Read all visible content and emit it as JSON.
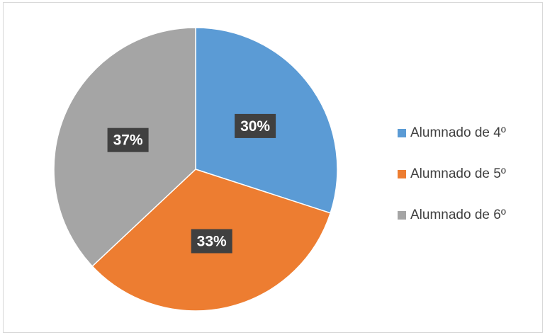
{
  "chart_data": {
    "type": "pie",
    "title": "",
    "slices": [
      {
        "label": "Alumnado de 4º",
        "value": 30,
        "display": "30%",
        "color": "#5b9bd5"
      },
      {
        "label": "Alumnado de 5º",
        "value": 33,
        "display": "33%",
        "color": "#ed7d31"
      },
      {
        "label": "Alumnado de 6º",
        "value": 37,
        "display": "37%",
        "color": "#a5a5a5"
      }
    ],
    "legend_position": "right",
    "data_label_style": "dark box, white bold text"
  }
}
